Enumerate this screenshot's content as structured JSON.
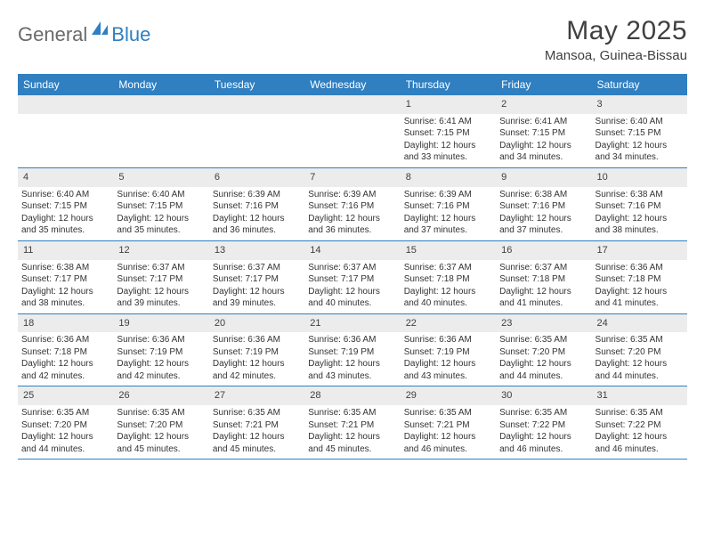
{
  "brand": {
    "word1": "General",
    "word2": "Blue"
  },
  "title": "May 2025",
  "location": "Mansoa, Guinea-Bissau",
  "colors": {
    "accent": "#2f7fc1",
    "header_text": "#ffffff",
    "daynum_bg": "#ececec",
    "text": "#333333",
    "title_text": "#404040",
    "logo_gray": "#6a6a6a"
  },
  "day_labels": [
    "Sunday",
    "Monday",
    "Tuesday",
    "Wednesday",
    "Thursday",
    "Friday",
    "Saturday"
  ],
  "blank_leading": 4,
  "days": [
    {
      "n": 1,
      "sr": "6:41 AM",
      "ss": "7:15 PM",
      "dl": "12 hours and 33 minutes."
    },
    {
      "n": 2,
      "sr": "6:41 AM",
      "ss": "7:15 PM",
      "dl": "12 hours and 34 minutes."
    },
    {
      "n": 3,
      "sr": "6:40 AM",
      "ss": "7:15 PM",
      "dl": "12 hours and 34 minutes."
    },
    {
      "n": 4,
      "sr": "6:40 AM",
      "ss": "7:15 PM",
      "dl": "12 hours and 35 minutes."
    },
    {
      "n": 5,
      "sr": "6:40 AM",
      "ss": "7:15 PM",
      "dl": "12 hours and 35 minutes."
    },
    {
      "n": 6,
      "sr": "6:39 AM",
      "ss": "7:16 PM",
      "dl": "12 hours and 36 minutes."
    },
    {
      "n": 7,
      "sr": "6:39 AM",
      "ss": "7:16 PM",
      "dl": "12 hours and 36 minutes."
    },
    {
      "n": 8,
      "sr": "6:39 AM",
      "ss": "7:16 PM",
      "dl": "12 hours and 37 minutes."
    },
    {
      "n": 9,
      "sr": "6:38 AM",
      "ss": "7:16 PM",
      "dl": "12 hours and 37 minutes."
    },
    {
      "n": 10,
      "sr": "6:38 AM",
      "ss": "7:16 PM",
      "dl": "12 hours and 38 minutes."
    },
    {
      "n": 11,
      "sr": "6:38 AM",
      "ss": "7:17 PM",
      "dl": "12 hours and 38 minutes."
    },
    {
      "n": 12,
      "sr": "6:37 AM",
      "ss": "7:17 PM",
      "dl": "12 hours and 39 minutes."
    },
    {
      "n": 13,
      "sr": "6:37 AM",
      "ss": "7:17 PM",
      "dl": "12 hours and 39 minutes."
    },
    {
      "n": 14,
      "sr": "6:37 AM",
      "ss": "7:17 PM",
      "dl": "12 hours and 40 minutes."
    },
    {
      "n": 15,
      "sr": "6:37 AM",
      "ss": "7:18 PM",
      "dl": "12 hours and 40 minutes."
    },
    {
      "n": 16,
      "sr": "6:37 AM",
      "ss": "7:18 PM",
      "dl": "12 hours and 41 minutes."
    },
    {
      "n": 17,
      "sr": "6:36 AM",
      "ss": "7:18 PM",
      "dl": "12 hours and 41 minutes."
    },
    {
      "n": 18,
      "sr": "6:36 AM",
      "ss": "7:18 PM",
      "dl": "12 hours and 42 minutes."
    },
    {
      "n": 19,
      "sr": "6:36 AM",
      "ss": "7:19 PM",
      "dl": "12 hours and 42 minutes."
    },
    {
      "n": 20,
      "sr": "6:36 AM",
      "ss": "7:19 PM",
      "dl": "12 hours and 42 minutes."
    },
    {
      "n": 21,
      "sr": "6:36 AM",
      "ss": "7:19 PM",
      "dl": "12 hours and 43 minutes."
    },
    {
      "n": 22,
      "sr": "6:36 AM",
      "ss": "7:19 PM",
      "dl": "12 hours and 43 minutes."
    },
    {
      "n": 23,
      "sr": "6:35 AM",
      "ss": "7:20 PM",
      "dl": "12 hours and 44 minutes."
    },
    {
      "n": 24,
      "sr": "6:35 AM",
      "ss": "7:20 PM",
      "dl": "12 hours and 44 minutes."
    },
    {
      "n": 25,
      "sr": "6:35 AM",
      "ss": "7:20 PM",
      "dl": "12 hours and 44 minutes."
    },
    {
      "n": 26,
      "sr": "6:35 AM",
      "ss": "7:20 PM",
      "dl": "12 hours and 45 minutes."
    },
    {
      "n": 27,
      "sr": "6:35 AM",
      "ss": "7:21 PM",
      "dl": "12 hours and 45 minutes."
    },
    {
      "n": 28,
      "sr": "6:35 AM",
      "ss": "7:21 PM",
      "dl": "12 hours and 45 minutes."
    },
    {
      "n": 29,
      "sr": "6:35 AM",
      "ss": "7:21 PM",
      "dl": "12 hours and 46 minutes."
    },
    {
      "n": 30,
      "sr": "6:35 AM",
      "ss": "7:22 PM",
      "dl": "12 hours and 46 minutes."
    },
    {
      "n": 31,
      "sr": "6:35 AM",
      "ss": "7:22 PM",
      "dl": "12 hours and 46 minutes."
    }
  ],
  "labels": {
    "sunrise": "Sunrise:",
    "sunset": "Sunset:",
    "daylight": "Daylight:"
  }
}
